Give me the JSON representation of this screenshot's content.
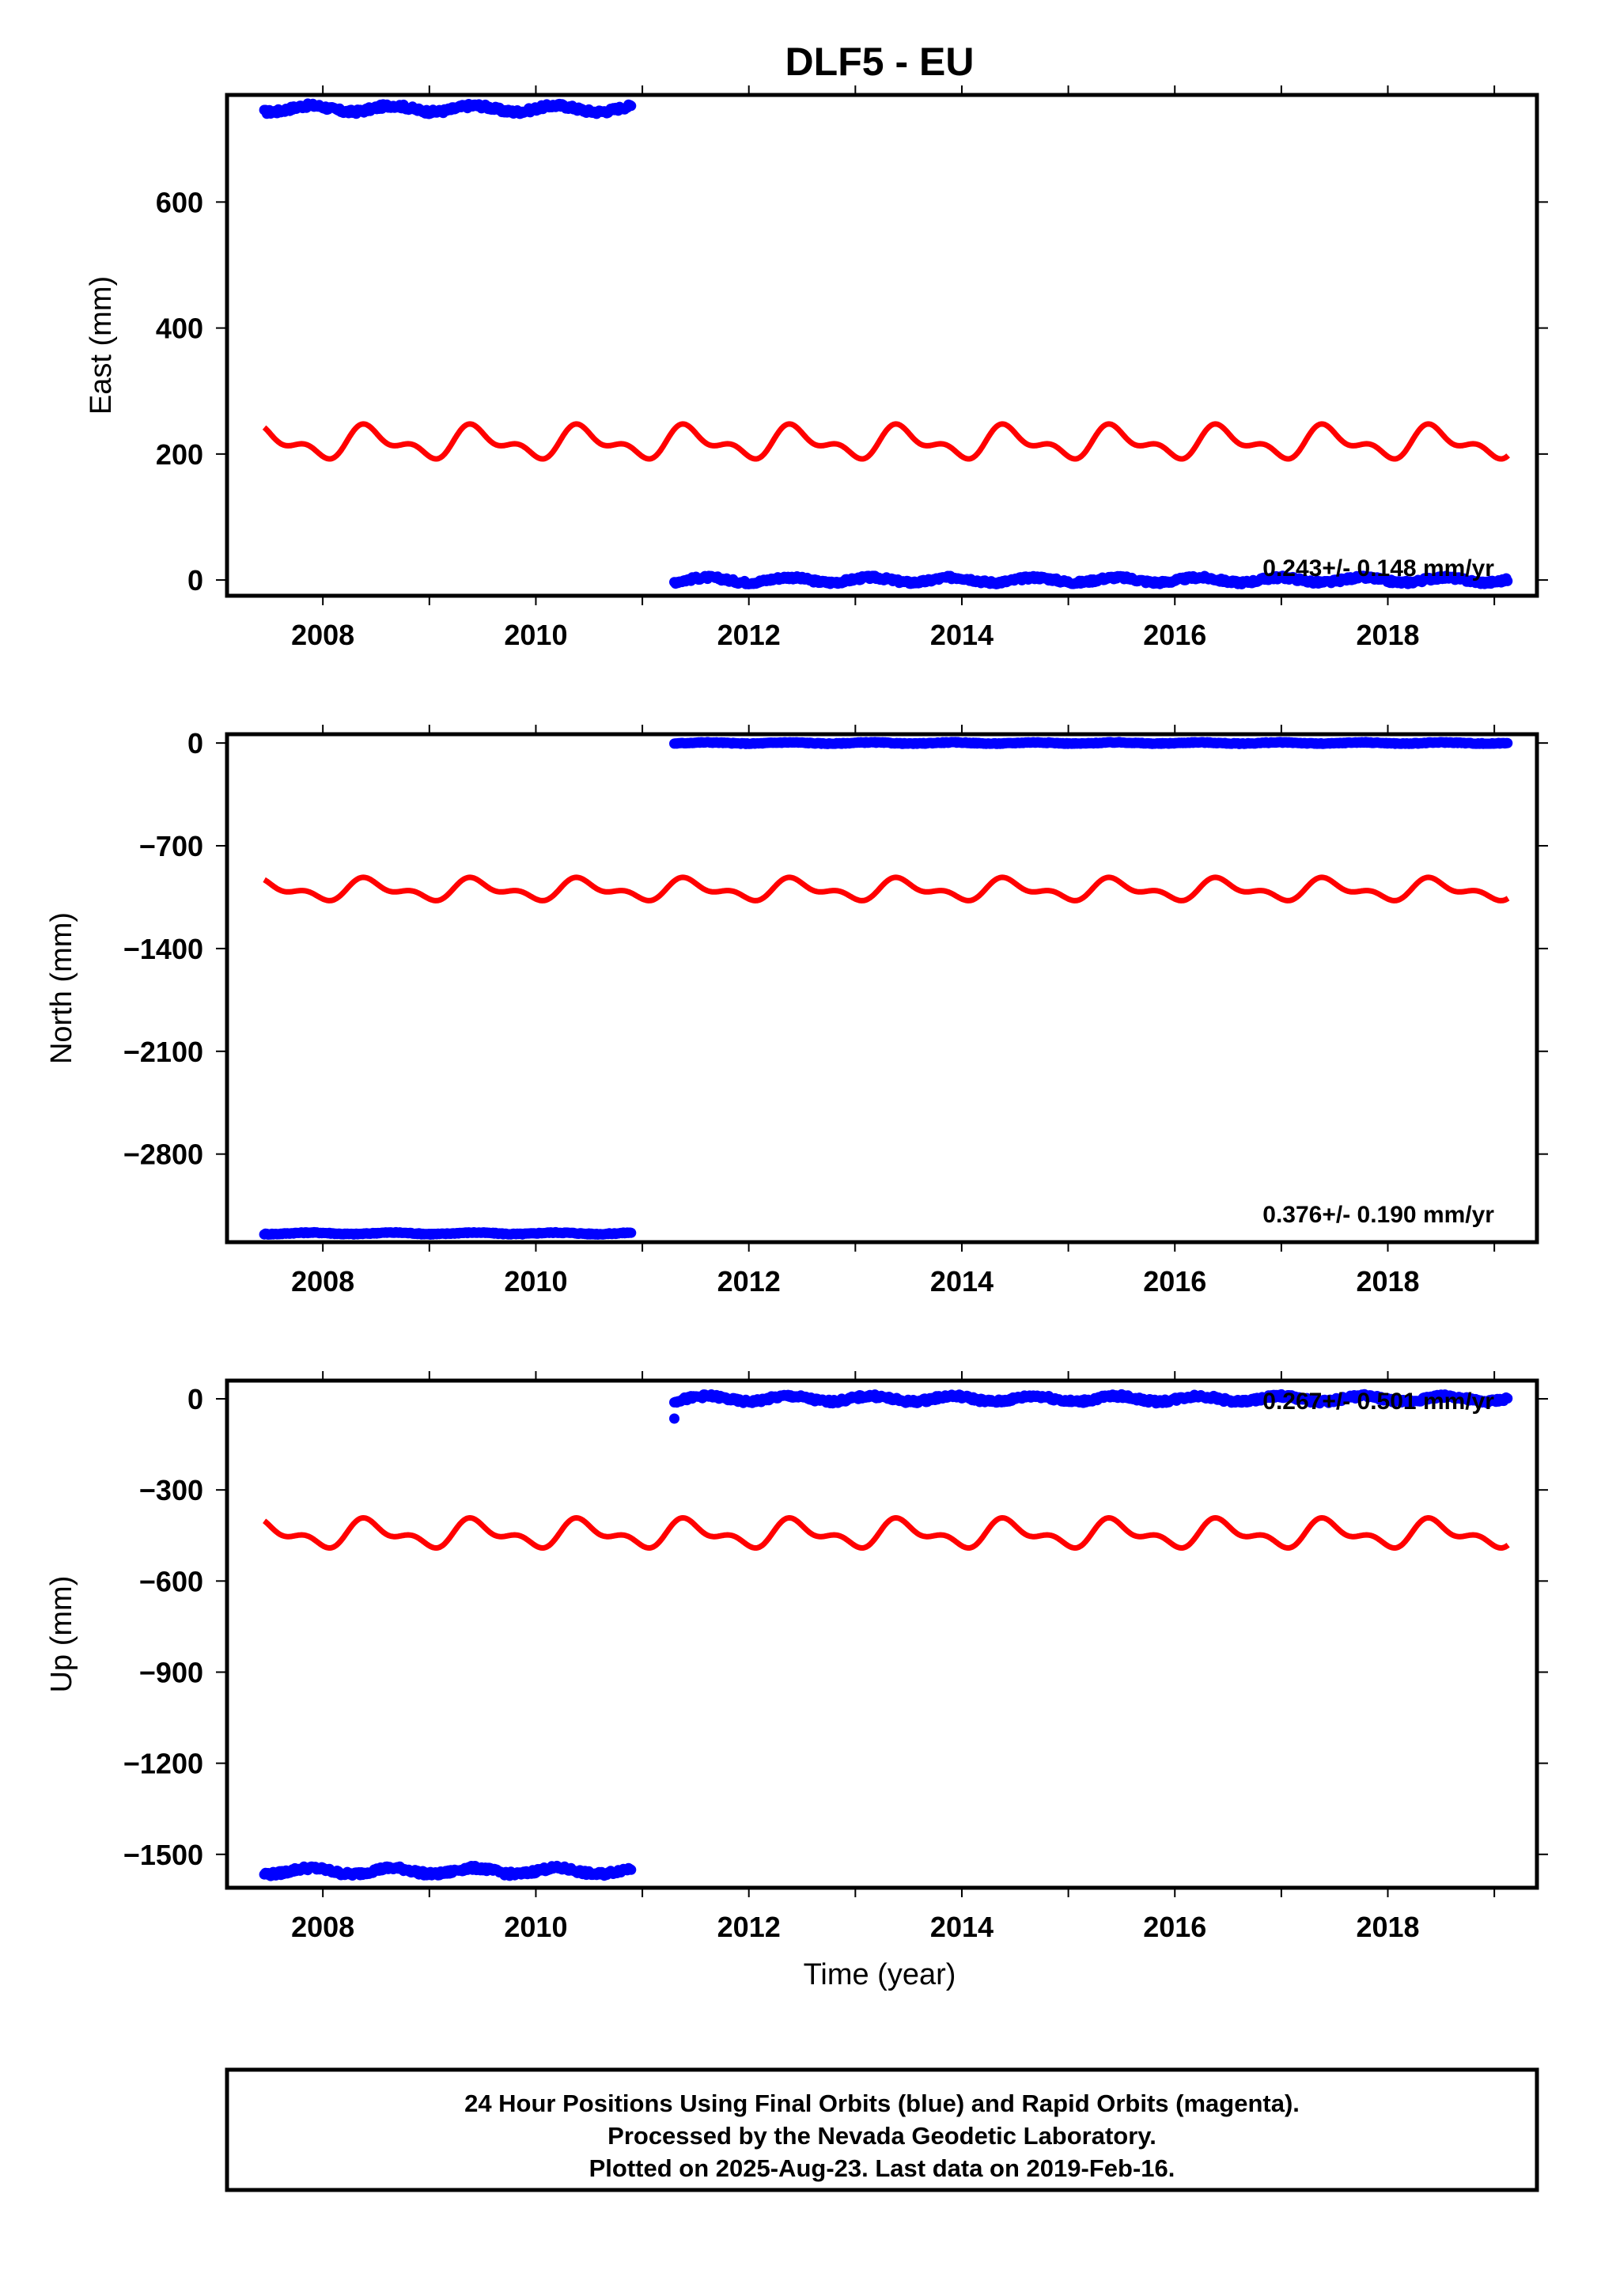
{
  "title": "DLF5 - EU",
  "colors": {
    "final_orbits": "#0000ff",
    "rapid_orbits": "#ff0000",
    "frame": "#000000"
  },
  "xlabel": "Time (year)",
  "x_ticks": [
    2008,
    2010,
    2012,
    2014,
    2016,
    2018
  ],
  "footer": {
    "line1": "24 Hour Positions Using Final Orbits (blue) and Rapid Orbits (magenta).",
    "line2": "Processed by the Nevada Geodetic Laboratory.",
    "line3": "Plotted on 2025-Aug-23. Last data on 2019-Feb-16."
  },
  "chart_data": [
    {
      "type": "scatter",
      "panel": "east",
      "title": "DLF5 - EU",
      "ylabel": "East (mm)",
      "xlim": [
        2007.1,
        2019.4
      ],
      "ylim": [
        -25,
        770
      ],
      "y_ticks": [
        0,
        200,
        400,
        600
      ],
      "grid": false,
      "rate_text": "0.243+/- 0.148 mm/yr",
      "series": [
        {
          "role": "final-orbit-positions",
          "segments": [
            {
              "x": [
                2007.45,
                2010.9
              ],
              "level": 748,
              "amp": 5
            },
            {
              "x": [
                2011.3,
                2019.13
              ],
              "level": 0,
              "amp": 4
            }
          ]
        },
        {
          "role": "rapid-orbit-model",
          "x": [
            2007.45,
            2019.13
          ],
          "center": 218,
          "seasonal_amplitude": 28
        }
      ]
    },
    {
      "type": "scatter",
      "panel": "north",
      "ylabel": "North (mm)",
      "xlim": [
        2007.1,
        2019.4
      ],
      "ylim": [
        -3400,
        60
      ],
      "y_ticks": [
        0,
        -700,
        -1400,
        -2100,
        -2800
      ],
      "grid": false,
      "rate_text": "0.376+/- 0.190 mm/yr",
      "series": [
        {
          "role": "final-orbit-positions",
          "segments": [
            {
              "x": [
                2007.45,
                2010.9
              ],
              "level": -3340,
              "amp": 5
            },
            {
              "x": [
                2011.3,
                2019.13
              ],
              "level": 0,
              "amp": 4
            }
          ]
        },
        {
          "role": "rapid-orbit-model",
          "x": [
            2007.45,
            2019.13
          ],
          "center": -1000,
          "seasonal_amplitude": 80
        }
      ]
    },
    {
      "type": "scatter",
      "panel": "up",
      "ylabel": "Up (mm)",
      "xlabel": "Time (year)",
      "xlim": [
        2007.1,
        2019.4
      ],
      "ylim": [
        -1610,
        60
      ],
      "y_ticks": [
        0,
        -300,
        -600,
        -900,
        -1200,
        -1500
      ],
      "grid": false,
      "rate_text": "0.267+/- 0.501 mm/yr",
      "series": [
        {
          "role": "final-orbit-positions",
          "segments": [
            {
              "x": [
                2007.45,
                2010.9
              ],
              "level": -1555,
              "amp": 10
            },
            {
              "x": [
                2011.3,
                2019.13
              ],
              "level": 0,
              "amp": 9
            }
          ],
          "outliers": [
            {
              "x": 2011.3,
              "y": -65
            }
          ]
        },
        {
          "role": "rapid-orbit-model",
          "x": [
            2007.45,
            2019.13
          ],
          "center": -445,
          "seasonal_amplitude": 50
        }
      ]
    }
  ]
}
